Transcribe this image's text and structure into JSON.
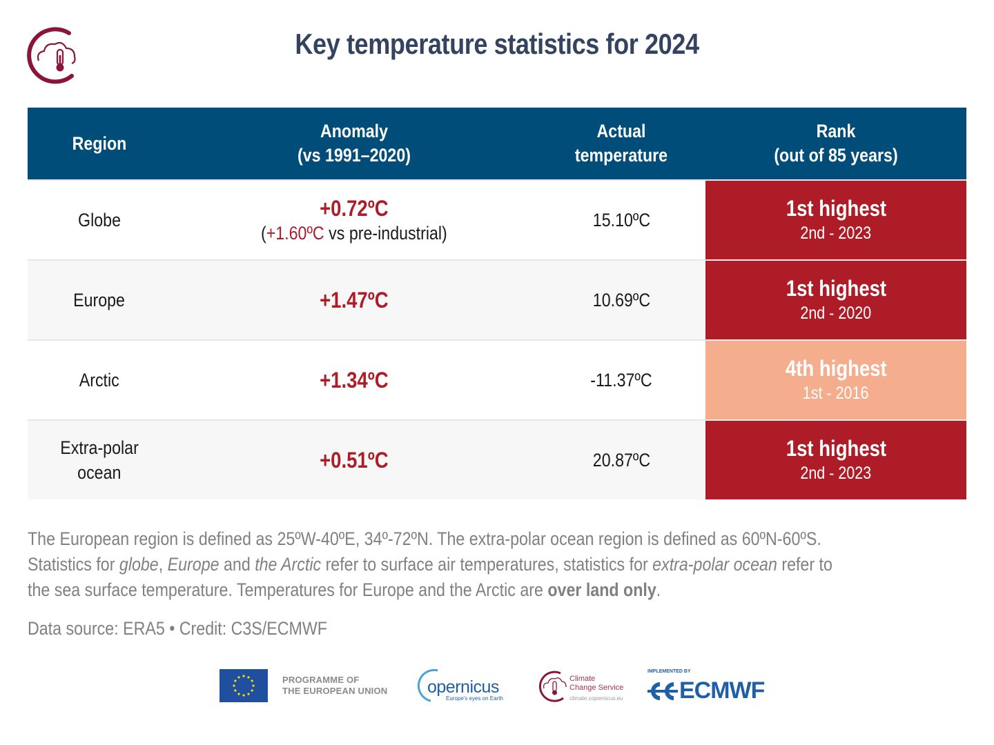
{
  "header": {
    "title": "Key temperature statistics for 2024",
    "logo_icon": "climate-change-service-thermometer-cloud-icon"
  },
  "colors": {
    "title": "#34435f",
    "header_bg": "#004d7a",
    "anomaly_red": "#ae1c28",
    "rank_first": "#ae1c28",
    "rank_fourth": "#f4ad8d",
    "row_alt_bg": "#f7f7f7",
    "note_text": "#808080"
  },
  "table": {
    "columns": [
      {
        "line1": "Region",
        "line2": ""
      },
      {
        "line1": "Anomaly",
        "line2": "(vs 1991–2020)"
      },
      {
        "line1": "Actual",
        "line2": "temperature"
      },
      {
        "line1": "Rank",
        "line2": "(out of 85 years)"
      }
    ],
    "rows": [
      {
        "region_line1": "Globe",
        "region_line2": "",
        "anomaly": "+0.72ºC",
        "anomaly_sub_open": "(",
        "anomaly_sub_value": "+1.60ºC",
        "anomaly_sub_rest": " vs pre-industrial)",
        "actual": "15.10ºC",
        "rank": "1st highest",
        "rank_sub": "2nd - 2023",
        "rank_color": "#ae1c28"
      },
      {
        "region_line1": "Europe",
        "region_line2": "",
        "anomaly": "+1.47ºC",
        "actual": "10.69ºC",
        "rank": "1st highest",
        "rank_sub": "2nd - 2020",
        "rank_color": "#ae1c28"
      },
      {
        "region_line1": "Arctic",
        "region_line2": "",
        "anomaly": "+1.34ºC",
        "actual": "-11.37ºC",
        "rank": "4th highest",
        "rank_sub": "1st - 2016",
        "rank_color": "#f4ad8d"
      },
      {
        "region_line1": "Extra-polar",
        "region_line2": "ocean",
        "anomaly": "+0.51ºC",
        "actual": "20.87ºC",
        "rank": "1st highest",
        "rank_sub": "2nd - 2023",
        "rank_color": "#ae1c28"
      }
    ]
  },
  "notes": {
    "line1": "The European region is defined as 25ºW-40ºE, 34º-72ºN. The extra-polar ocean region is defined as 60ºN-60ºS.",
    "l2_a": "Statistics for ",
    "l2_i1": "globe",
    "l2_b": ", ",
    "l2_i2": "Europe",
    "l2_c": " and ",
    "l2_i3": "the Arctic",
    "l2_d": " refer to surface air temperatures, statistics for ",
    "l2_i4": "extra-polar ocean",
    "l2_e": " refer to",
    "l3_a": "the sea surface temperature. Temperatures for Europe and the Arctic are ",
    "l3_bold": "over land only",
    "l3_end": "."
  },
  "source": "Data source: ERA5 • Credit: C3S/ECMWF",
  "footer": {
    "eu_line1": "PROGRAMME OF",
    "eu_line2": "THE EUROPEAN UNION",
    "copernicus_name": "opernicus",
    "copernicus_tagline": "Europe's eyes on Earth",
    "c3s_line1": "Climate",
    "c3s_line2": "Change Service",
    "c3s_url": "climate.copernicus.eu",
    "ecmwf_implemented": "IMPLEMENTED BY",
    "ecmwf_name": "ECMWF"
  }
}
